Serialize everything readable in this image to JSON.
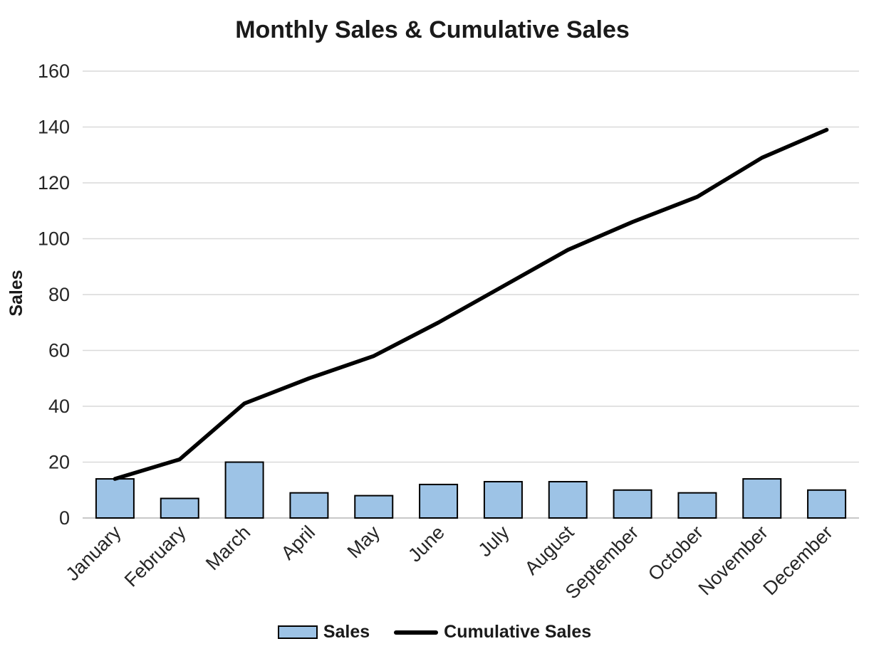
{
  "title": "Monthly Sales & Cumulative Sales",
  "y_axis_title": "Sales",
  "legend": {
    "sales_label": "Sales",
    "cumulative_label": "Cumulative Sales"
  },
  "colors": {
    "bar_fill": "#9DC3E6",
    "bar_border": "#000000",
    "line": "#000000",
    "gridline": "#D9D9D9",
    "axis_line": "#C8C8C8",
    "tick_text": "#262626",
    "title_text": "#1A1A1A"
  },
  "chart_data": {
    "type": "combo-bar-line",
    "title": "Monthly Sales & Cumulative Sales",
    "xlabel": "",
    "ylabel": "Sales",
    "categories": [
      "January",
      "February",
      "March",
      "April",
      "May",
      "June",
      "July",
      "August",
      "September",
      "October",
      "November",
      "December"
    ],
    "series": [
      {
        "name": "Sales",
        "type": "bar",
        "values": [
          14,
          7,
          20,
          9,
          8,
          12,
          13,
          13,
          10,
          9,
          14,
          10
        ]
      },
      {
        "name": "Cumulative Sales",
        "type": "line",
        "values": [
          14,
          21,
          41,
          50,
          58,
          70,
          83,
          96,
          106,
          115,
          129,
          139
        ]
      }
    ],
    "ylim": [
      0,
      160
    ],
    "ytick_step": 20,
    "yticks": [
      0,
      20,
      40,
      60,
      80,
      100,
      120,
      140,
      160
    ],
    "x_label_rotation_deg": 45,
    "grid": true,
    "legend_position": "bottom"
  }
}
